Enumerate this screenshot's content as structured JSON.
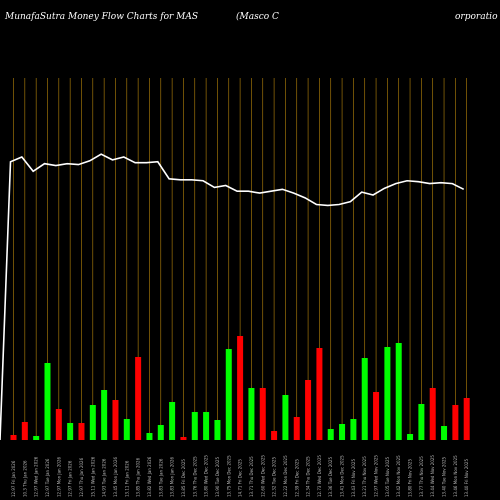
{
  "header": {
    "left": "MunafaSutra  Money Flow  Charts for MAS",
    "middle": "(Masco  C",
    "right": "orporatio"
  },
  "colors": {
    "up": "#00ff00",
    "down": "#ff0000",
    "grid": "#b8860b",
    "line": "#ffffff",
    "background": "#000000"
  },
  "chart_data": {
    "type": "bar",
    "title": "MunafaSutra Money Flow Charts for MAS",
    "grid": true,
    "series": [
      {
        "name": "volume",
        "kind": "bar",
        "values": [
          5,
          18,
          4,
          77,
          31,
          17,
          17,
          35,
          50,
          40,
          21,
          83,
          7,
          15,
          38,
          3,
          28,
          28,
          20,
          91,
          104,
          52,
          52,
          9,
          45,
          23,
          60,
          92,
          11,
          16,
          21,
          82,
          48,
          93,
          97,
          6,
          36,
          52,
          14,
          35,
          42
        ]
      },
      {
        "name": "direction",
        "kind": "category",
        "values": [
          "down",
          "down",
          "up",
          "up",
          "down",
          "up",
          "down",
          "up",
          "up",
          "down",
          "up",
          "down",
          "up",
          "up",
          "up",
          "down",
          "up",
          "up",
          "up",
          "up",
          "down",
          "up",
          "down",
          "down",
          "up",
          "down",
          "down",
          "down",
          "up",
          "up",
          "up",
          "up",
          "down",
          "up",
          "up",
          "up",
          "up",
          "down",
          "up",
          "down",
          "down"
        ]
      },
      {
        "name": "money-flow",
        "kind": "line",
        "values": [
          95,
          100,
          85,
          93,
          91,
          93,
          92,
          96,
          103,
          97,
          100,
          94,
          94,
          95,
          77,
          76,
          76,
          75,
          68,
          70,
          64,
          64,
          62,
          64,
          66,
          62,
          57,
          50,
          49,
          50,
          53,
          63,
          60,
          67,
          72,
          75,
          74,
          72,
          73,
          72,
          66
        ]
      }
    ],
    "x_tick_labels": [
      "12.97 Fri Jan 2026",
      "10.3 Thu Jan 2026",
      "12.97 Wed Jan 2026",
      "12.97 Tue Jan 2026",
      "12.97 Mon Jan 2026",
      "12.97 Fri Jan 2026",
      "12.97 Thu Jan 2026",
      "15.11 Wed Jan 2026",
      "14.93 Tue Jan 2026",
      "13.45 Mon Jan 2026",
      "13.11 Fri Jan 2026",
      "13.85 Thu Jan 2026",
      "13.82 Wed Jan 2026",
      "13.83 Tue Jan 2026",
      "13.83 Mon Jan 2026",
      "13.85 Fri Dec 2025",
      "13.76 Thu Dec 2025",
      "13.80 Wed Dec 2025",
      "13.90 Tue Dec 2025",
      "13.75 Mon Dec 2025",
      "14.71 Fri Dec 2025",
      "13.71 Thu Dec 2025",
      "12.60 Wed Dec 2025",
      "12.32 Tue Dec 2025",
      "12.22 Mon Dec 2025",
      "12.39 Fri Dec 2025",
      "12.34 Thu Dec 2025",
      "12.73 Wed Dec 2025",
      "13.36 Tue Dec 2025",
      "13.41 Mon Dec 2025",
      "13.43 Fri Nov 2025",
      "13.21 Thu Nov 2025",
      "12.97 Wed Nov 2025",
      "13.05 Tue Nov 2025",
      "13.42 Mon Nov 2025",
      "13.80 Fri Nov 2025",
      "13.77 Thu Nov 2025",
      "13.44 Wed Nov 2025",
      "13.40 Tue Nov 2025",
      "13.46 Mon Nov 2025",
      "13.40 Fri Nov 2025"
    ]
  }
}
